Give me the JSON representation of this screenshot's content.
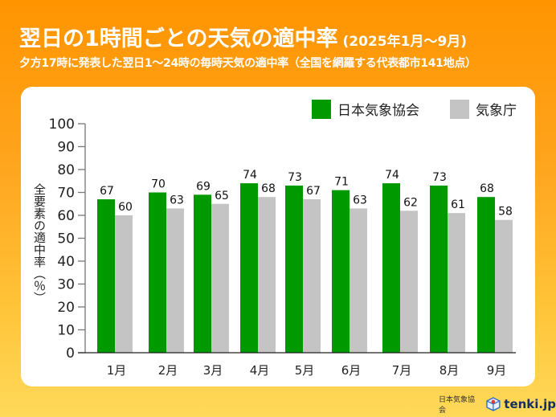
{
  "header": {
    "title": "翌日の1時間ごとの天気の適中率",
    "period": "(2025年1月～9月)",
    "subtitle": "夕方17時に発表した翌日1～24時の毎時天気の適中率（全国を網羅する代表都市141地点）"
  },
  "footer": {
    "org": "日本気象協会",
    "brand": "tenki.jp",
    "logo_icon": "tenki-logo-icon"
  },
  "colors": {
    "series_jwa": "#009900",
    "series_jma": "#c4c4c4"
  },
  "chart_data": {
    "type": "bar",
    "title": "翌日の1時間ごとの天気の適中率",
    "xlabel": "",
    "ylabel": "全要素の適中率（％）",
    "ylim": [
      0,
      100
    ],
    "yticks": [
      "0",
      "10",
      "20",
      "30",
      "40",
      "50",
      "60",
      "70",
      "80",
      "90",
      "100"
    ],
    "grid": false,
    "legend_position": "top-right",
    "categories": [
      "1月",
      "2月",
      "3月",
      "4月",
      "5月",
      "6月",
      "7月",
      "8月",
      "9月"
    ],
    "series": [
      {
        "name": "日本気象協会",
        "values": [
          67,
          70,
          69,
          74,
          73,
          71,
          74,
          73,
          68
        ]
      },
      {
        "name": "気象庁",
        "values": [
          60,
          63,
          65,
          68,
          67,
          63,
          62,
          61,
          58
        ]
      }
    ]
  }
}
